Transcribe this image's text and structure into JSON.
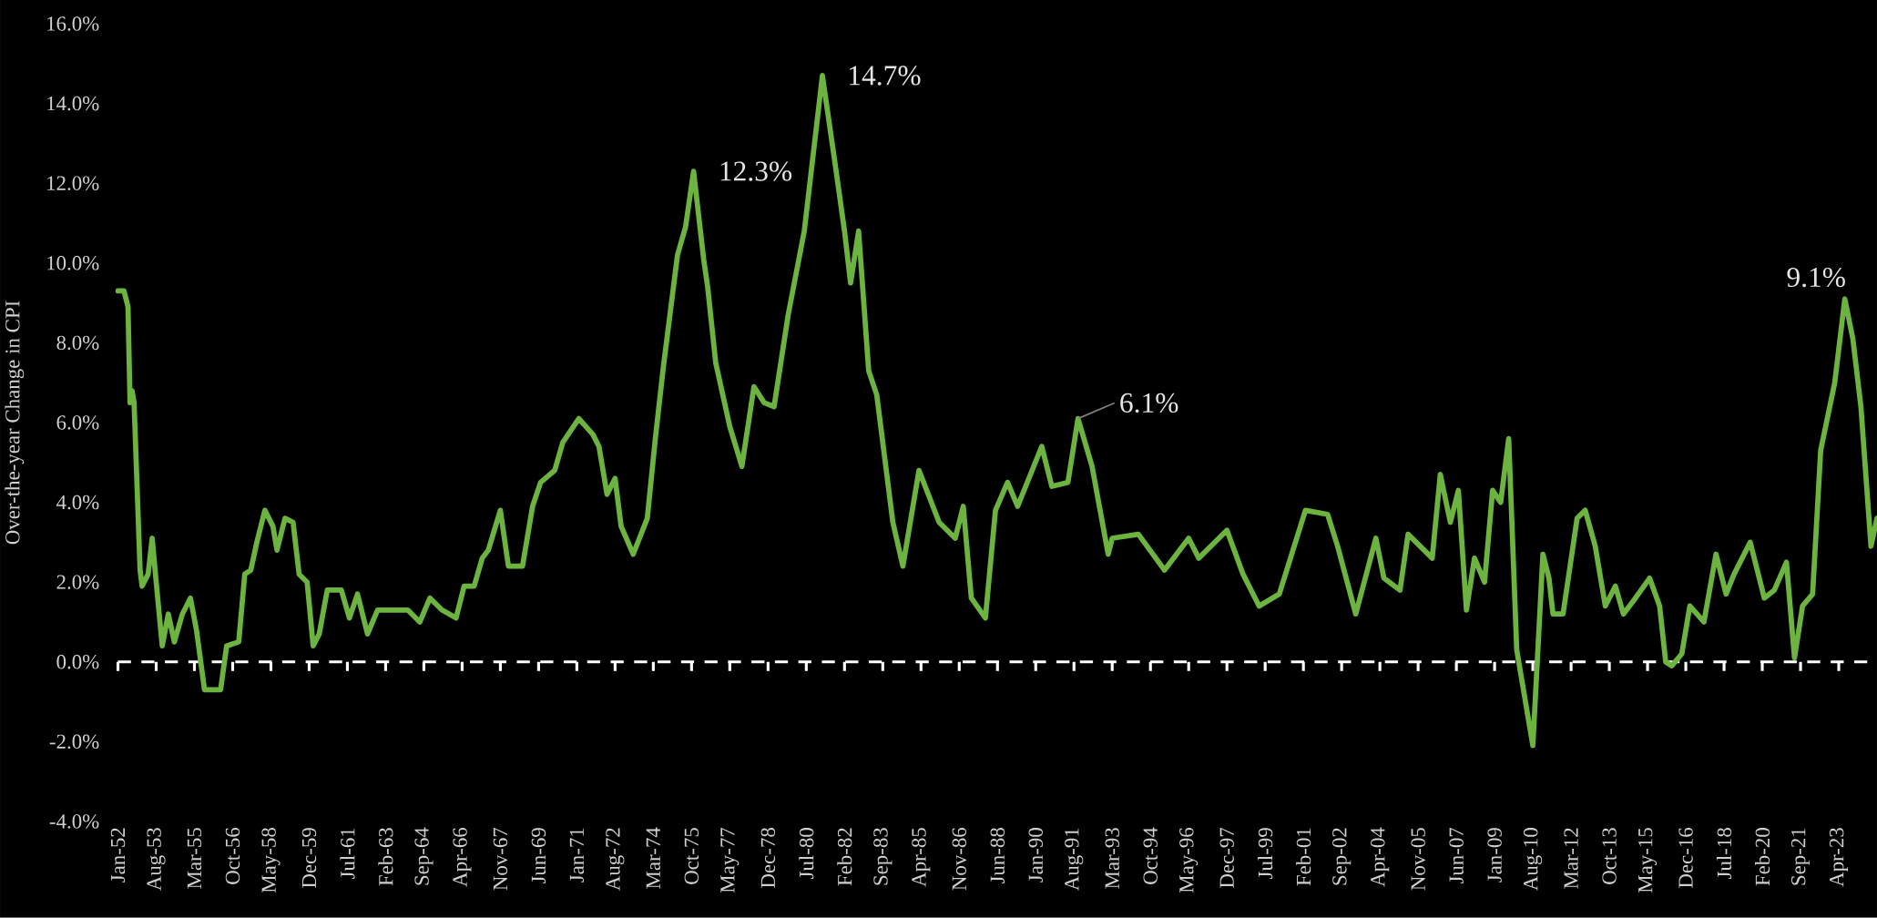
{
  "chart_data": {
    "type": "line",
    "ylabel": "Over-the-year Change in CPI",
    "color": "#6db33f",
    "x": [
      "1952-01",
      "1952-04",
      "1952-06",
      "1952-07",
      "1952-08",
      "1952-09",
      "1952-10",
      "1952-12",
      "1953-01",
      "1953-04",
      "1953-06",
      "1953-08",
      "1953-11",
      "1954-02",
      "1954-05",
      "1954-09",
      "1955-01",
      "1955-04",
      "1955-08",
      "1956-04",
      "1956-07",
      "1957-01",
      "1957-04",
      "1957-07",
      "1957-10",
      "1958-02",
      "1958-06",
      "1958-08",
      "1958-12",
      "1959-04",
      "1959-07",
      "1959-11",
      "1960-02",
      "1960-05",
      "1960-09",
      "1961-04",
      "1961-08",
      "1961-12",
      "1962-05",
      "1962-10",
      "1963-06",
      "1964-01",
      "1964-07",
      "1964-12",
      "1965-06",
      "1966-01",
      "1966-05",
      "1966-10",
      "1967-02",
      "1967-05",
      "1967-11",
      "1968-03",
      "1968-10",
      "1969-03",
      "1969-07",
      "1970-02",
      "1970-06",
      "1971-02",
      "1971-09",
      "1971-12",
      "1972-04",
      "1972-08",
      "1972-11",
      "1973-05",
      "1973-12",
      "1974-04",
      "1974-08",
      "1975-03",
      "1975-07",
      "1975-11",
      "1976-04",
      "1976-06",
      "1976-10",
      "1977-05",
      "1977-11",
      "1978-05",
      "1978-10",
      "1979-03",
      "1979-10",
      "1980-06",
      "1980-09",
      "1981-03",
      "1981-09",
      "1982-02",
      "1982-05",
      "1982-09",
      "1983-02",
      "1983-06",
      "1983-10",
      "1984-02",
      "1984-07",
      "1985-03",
      "1986-01",
      "1986-09",
      "1987-01",
      "1987-05",
      "1987-12",
      "1988-05",
      "1988-11",
      "1989-04",
      "1990-04",
      "1990-09",
      "1991-05",
      "1991-10",
      "1992-05",
      "1993-01",
      "1993-03",
      "1994-04",
      "1995-05",
      "1996-05",
      "1996-10",
      "1997-12",
      "1998-08",
      "1999-04",
      "2000-02",
      "2001-03",
      "2002-02",
      "2002-07",
      "2003-04",
      "2004-02",
      "2004-06",
      "2005-02",
      "2005-06",
      "2006-06",
      "2006-10",
      "2007-03",
      "2007-07",
      "2007-11",
      "2008-03",
      "2008-08",
      "2008-12",
      "2009-04",
      "2009-08",
      "2009-12",
      "2010-08",
      "2011-01",
      "2011-04",
      "2011-06",
      "2011-11",
      "2012-06",
      "2012-10",
      "2013-03",
      "2013-08",
      "2014-01",
      "2014-05",
      "2014-11",
      "2015-06",
      "2015-11",
      "2016-02",
      "2016-05",
      "2016-10",
      "2017-02",
      "2017-09",
      "2018-03",
      "2018-08",
      "2018-12",
      "2019-08",
      "2020-03",
      "2020-08",
      "2021-02",
      "2021-06",
      "2021-10",
      "2022-03",
      "2022-07",
      "2023-02",
      "2023-07",
      "2023-11",
      "2024-03",
      "2024-08",
      "2024-11"
    ],
    "values": [
      9.3,
      9.3,
      8.9,
      6.5,
      6.8,
      6.5,
      5.1,
      2.3,
      1.9,
      2.2,
      3.1,
      2.0,
      0.4,
      1.2,
      0.5,
      1.2,
      1.6,
      0.8,
      -0.7,
      -0.7,
      0.4,
      0.5,
      2.2,
      2.3,
      3.0,
      3.8,
      3.4,
      2.8,
      3.6,
      3.5,
      2.2,
      2.0,
      0.4,
      0.7,
      1.8,
      1.8,
      1.1,
      1.7,
      0.7,
      1.3,
      1.3,
      1.3,
      1.0,
      1.6,
      1.3,
      1.1,
      1.9,
      1.9,
      2.6,
      2.8,
      3.8,
      2.4,
      2.4,
      3.9,
      4.5,
      4.8,
      5.5,
      6.1,
      5.7,
      5.4,
      4.2,
      4.6,
      3.4,
      2.7,
      3.6,
      5.6,
      7.4,
      10.2,
      10.9,
      12.3,
      10.1,
      9.4,
      7.5,
      5.9,
      4.9,
      6.9,
      6.5,
      6.4,
      8.7,
      10.8,
      12.1,
      14.7,
      12.6,
      10.8,
      9.5,
      10.8,
      7.3,
      6.7,
      5.1,
      3.5,
      2.4,
      4.8,
      3.5,
      3.1,
      3.9,
      1.6,
      1.1,
      3.8,
      4.5,
      3.9,
      5.4,
      4.4,
      4.5,
      6.1,
      4.9,
      2.7,
      3.1,
      3.2,
      2.3,
      3.1,
      2.6,
      3.3,
      2.2,
      1.4,
      1.7,
      3.8,
      3.7,
      2.9,
      1.2,
      3.1,
      2.1,
      1.8,
      3.2,
      2.6,
      4.7,
      3.5,
      4.3,
      1.3,
      2.6,
      2.0,
      4.3,
      4.0,
      5.6,
      0.3,
      -2.1,
      2.7,
      2.1,
      1.2,
      1.2,
      3.6,
      3.8,
      2.9,
      1.4,
      1.9,
      1.2,
      1.6,
      2.1,
      1.4,
      0.0,
      -0.1,
      0.2,
      1.4,
      1.0,
      2.7,
      1.7,
      2.2,
      3.0,
      1.6,
      1.8,
      2.5,
      0.1,
      1.4,
      1.7,
      5.3,
      7.0,
      9.1,
      8.1,
      6.4,
      2.9,
      3.6
    ],
    "xlim": [
      "1951-11",
      "2024-11"
    ],
    "ylim": [
      -4,
      16
    ],
    "yticks": [
      {
        "value": -4,
        "label": "-4.0%"
      },
      {
        "value": -2,
        "label": "-2.0%"
      },
      {
        "value": 0,
        "label": "0.0%"
      },
      {
        "value": 2,
        "label": "2.0%"
      },
      {
        "value": 4,
        "label": "4.0%"
      },
      {
        "value": 6,
        "label": "6.0%"
      },
      {
        "value": 8,
        "label": "8.0%"
      },
      {
        "value": 10,
        "label": "10.0%"
      },
      {
        "value": 12,
        "label": "12.0%"
      },
      {
        "value": 14,
        "label": "14.0%"
      },
      {
        "value": 16,
        "label": "16.0%"
      }
    ],
    "xticks": [
      {
        "value": "1952-01",
        "label": "Jan-52"
      },
      {
        "value": "1953-08",
        "label": "Aug-53"
      },
      {
        "value": "1955-03",
        "label": "Mar-55"
      },
      {
        "value": "1956-10",
        "label": "Oct-56"
      },
      {
        "value": "1958-05",
        "label": "May-58"
      },
      {
        "value": "1959-12",
        "label": "Dec-59"
      },
      {
        "value": "1961-07",
        "label": "Jul-61"
      },
      {
        "value": "1963-02",
        "label": "Feb-63"
      },
      {
        "value": "1964-09",
        "label": "Sep-64"
      },
      {
        "value": "1966-04",
        "label": "Apr-66"
      },
      {
        "value": "1967-11",
        "label": "Nov-67"
      },
      {
        "value": "1969-06",
        "label": "Jun-69"
      },
      {
        "value": "1971-01",
        "label": "Jan-71"
      },
      {
        "value": "1972-08",
        "label": "Aug-72"
      },
      {
        "value": "1974-03",
        "label": "Mar-74"
      },
      {
        "value": "1975-10",
        "label": "Oct-75"
      },
      {
        "value": "1977-05",
        "label": "May-77"
      },
      {
        "value": "1978-12",
        "label": "Dec-78"
      },
      {
        "value": "1980-07",
        "label": "Jul-80"
      },
      {
        "value": "1982-02",
        "label": "Feb-82"
      },
      {
        "value": "1983-09",
        "label": "Sep-83"
      },
      {
        "value": "1985-04",
        "label": "Apr-85"
      },
      {
        "value": "1986-11",
        "label": "Nov-86"
      },
      {
        "value": "1988-06",
        "label": "Jun-88"
      },
      {
        "value": "1990-01",
        "label": "Jan-90"
      },
      {
        "value": "1991-08",
        "label": "Aug-91"
      },
      {
        "value": "1993-03",
        "label": "Mar-93"
      },
      {
        "value": "1994-10",
        "label": "Oct-94"
      },
      {
        "value": "1996-05",
        "label": "May-96"
      },
      {
        "value": "1997-12",
        "label": "Dec-97"
      },
      {
        "value": "1999-07",
        "label": "Jul-99"
      },
      {
        "value": "2001-02",
        "label": "Feb-01"
      },
      {
        "value": "2002-09",
        "label": "Sep-02"
      },
      {
        "value": "2004-04",
        "label": "Apr-04"
      },
      {
        "value": "2005-11",
        "label": "Nov-05"
      },
      {
        "value": "2007-06",
        "label": "Jun-07"
      },
      {
        "value": "2009-01",
        "label": "Jan-09"
      },
      {
        "value": "2010-08",
        "label": "Aug-10"
      },
      {
        "value": "2012-03",
        "label": "Mar-12"
      },
      {
        "value": "2013-10",
        "label": "Oct-13"
      },
      {
        "value": "2015-05",
        "label": "May-15"
      },
      {
        "value": "2016-12",
        "label": "Dec-16"
      },
      {
        "value": "2018-07",
        "label": "Jul-18"
      },
      {
        "value": "2020-02",
        "label": "Feb-20"
      },
      {
        "value": "2021-09",
        "label": "Sep-21"
      },
      {
        "value": "2023-04",
        "label": "Apr-23"
      }
    ],
    "ref_lines": [
      {
        "axis": "y",
        "value": 0,
        "color": "#ffffff",
        "line_style": "dashed"
      }
    ],
    "annotations": [
      {
        "text": "12.3%",
        "x": "1975-11",
        "y": 12.3
      },
      {
        "text": "14.7%",
        "x": "1981-03",
        "y": 14.7
      },
      {
        "text": "6.1%",
        "x": "1991-10",
        "y": 6.1
      },
      {
        "text": "9.1%",
        "x": "2023-07",
        "y": 9.1
      }
    ]
  }
}
